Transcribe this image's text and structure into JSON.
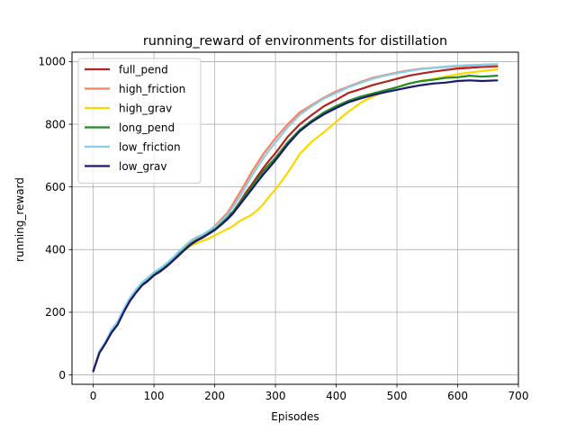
{
  "chart_data": {
    "type": "line",
    "title": "running_reward of environments for distillation",
    "xlabel": "Episodes",
    "ylabel": "running_reward",
    "xlim": [
      -35,
      700
    ],
    "ylim": [
      -30,
      1030
    ],
    "xticks": [
      0,
      100,
      200,
      300,
      400,
      500,
      600,
      700
    ],
    "yticks": [
      0,
      200,
      400,
      600,
      800,
      1000
    ],
    "grid": true,
    "legend_position": "top-left",
    "series": [
      {
        "name": "full_pend",
        "color": "#b22222",
        "x": [
          0,
          10,
          20,
          30,
          40,
          50,
          60,
          70,
          80,
          90,
          100,
          110,
          120,
          130,
          140,
          150,
          160,
          170,
          180,
          190,
          200,
          210,
          220,
          230,
          240,
          250,
          260,
          270,
          280,
          290,
          300,
          320,
          340,
          360,
          380,
          400,
          420,
          440,
          460,
          480,
          500,
          520,
          540,
          560,
          580,
          600,
          620,
          640,
          665
        ],
        "y": [
          12,
          70,
          100,
          135,
          160,
          200,
          235,
          262,
          285,
          300,
          318,
          330,
          345,
          362,
          380,
          398,
          415,
          430,
          440,
          452,
          468,
          485,
          505,
          520,
          548,
          578,
          605,
          633,
          660,
          685,
          708,
          760,
          800,
          830,
          858,
          878,
          900,
          912,
          925,
          935,
          945,
          955,
          962,
          968,
          973,
          978,
          980,
          983,
          985
        ]
      },
      {
        "name": "high_friction",
        "color": "#fa8060",
        "x": [
          0,
          10,
          20,
          30,
          40,
          50,
          60,
          70,
          80,
          90,
          100,
          110,
          120,
          130,
          140,
          150,
          160,
          170,
          180,
          190,
          200,
          210,
          220,
          230,
          240,
          250,
          260,
          270,
          280,
          290,
          300,
          320,
          340,
          360,
          380,
          400,
          420,
          440,
          460,
          480,
          500,
          520,
          540,
          560,
          580,
          600,
          620,
          640,
          665
        ],
        "y": [
          12,
          72,
          103,
          140,
          165,
          205,
          240,
          268,
          290,
          305,
          322,
          335,
          350,
          366,
          385,
          402,
          420,
          433,
          444,
          458,
          475,
          495,
          515,
          545,
          578,
          610,
          645,
          675,
          705,
          730,
          755,
          800,
          838,
          862,
          885,
          905,
          920,
          935,
          948,
          957,
          965,
          972,
          977,
          980,
          983,
          985,
          987,
          988,
          990
        ]
      },
      {
        "name": "high_grav",
        "color": "#ffd700",
        "x": [
          0,
          10,
          20,
          30,
          40,
          50,
          60,
          70,
          80,
          90,
          100,
          110,
          120,
          130,
          140,
          150,
          160,
          170,
          180,
          190,
          200,
          210,
          220,
          230,
          240,
          250,
          260,
          270,
          280,
          290,
          300,
          320,
          340,
          360,
          380,
          400,
          420,
          440,
          460,
          480,
          500,
          520,
          540,
          560,
          580,
          600,
          620,
          640,
          665
        ],
        "y": [
          12,
          70,
          100,
          135,
          160,
          200,
          235,
          262,
          285,
          300,
          318,
          330,
          345,
          362,
          380,
          398,
          412,
          420,
          428,
          435,
          445,
          455,
          465,
          475,
          490,
          500,
          510,
          525,
          545,
          570,
          592,
          645,
          705,
          745,
          775,
          808,
          840,
          868,
          888,
          905,
          918,
          930,
          938,
          945,
          952,
          960,
          965,
          970,
          975
        ]
      },
      {
        "name": "long_pend",
        "color": "#228b22",
        "x": [
          0,
          10,
          20,
          30,
          40,
          50,
          60,
          70,
          80,
          90,
          100,
          110,
          120,
          130,
          140,
          150,
          160,
          170,
          180,
          190,
          200,
          210,
          220,
          230,
          240,
          250,
          260,
          270,
          280,
          290,
          300,
          320,
          340,
          360,
          380,
          400,
          420,
          440,
          460,
          480,
          500,
          520,
          540,
          560,
          580,
          600,
          620,
          640,
          665
        ],
        "y": [
          12,
          72,
          102,
          138,
          162,
          203,
          238,
          265,
          288,
          303,
          320,
          333,
          348,
          364,
          383,
          400,
          418,
          430,
          440,
          452,
          466,
          482,
          500,
          520,
          545,
          572,
          598,
          625,
          650,
          672,
          693,
          742,
          782,
          812,
          838,
          858,
          875,
          888,
          898,
          908,
          918,
          930,
          938,
          942,
          948,
          950,
          955,
          952,
          955
        ]
      },
      {
        "name": "low_friction",
        "color": "#87ceeb",
        "x": [
          0,
          10,
          20,
          30,
          40,
          50,
          60,
          70,
          80,
          90,
          100,
          110,
          120,
          130,
          140,
          150,
          160,
          170,
          180,
          190,
          200,
          210,
          220,
          230,
          240,
          250,
          260,
          270,
          280,
          290,
          300,
          320,
          340,
          360,
          380,
          400,
          420,
          440,
          460,
          480,
          500,
          520,
          540,
          560,
          580,
          600,
          620,
          640,
          665
        ],
        "y": [
          12,
          75,
          105,
          145,
          170,
          210,
          245,
          272,
          295,
          310,
          328,
          340,
          355,
          372,
          392,
          410,
          428,
          440,
          448,
          460,
          472,
          490,
          508,
          535,
          565,
          598,
          632,
          662,
          692,
          718,
          742,
          790,
          830,
          858,
          882,
          900,
          918,
          932,
          945,
          955,
          963,
          970,
          976,
          980,
          984,
          987,
          989,
          990,
          992
        ]
      },
      {
        "name": "low_grav",
        "color": "#191970",
        "x": [
          0,
          10,
          20,
          30,
          40,
          50,
          60,
          70,
          80,
          90,
          100,
          110,
          120,
          130,
          140,
          150,
          160,
          170,
          180,
          190,
          200,
          210,
          220,
          230,
          240,
          250,
          260,
          270,
          280,
          290,
          300,
          320,
          340,
          360,
          380,
          400,
          420,
          440,
          460,
          480,
          500,
          520,
          540,
          560,
          580,
          600,
          620,
          640,
          665
        ],
        "y": [
          12,
          70,
          100,
          135,
          160,
          200,
          235,
          262,
          285,
          300,
          318,
          330,
          345,
          362,
          380,
          398,
          415,
          428,
          438,
          450,
          462,
          478,
          495,
          515,
          540,
          565,
          590,
          615,
          640,
          662,
          685,
          735,
          778,
          808,
          832,
          852,
          870,
          882,
          893,
          902,
          910,
          918,
          925,
          930,
          933,
          938,
          940,
          938,
          940
        ]
      }
    ]
  }
}
